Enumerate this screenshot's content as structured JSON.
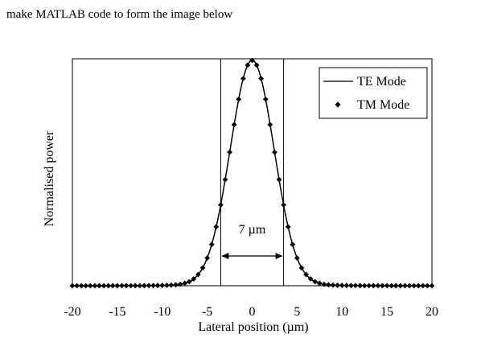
{
  "question": {
    "text": "make MATLAB code to form the image below"
  },
  "chart_data": {
    "type": "line",
    "xlabel": "Lateral position (µm)",
    "ylabel": "Normalised power",
    "xlim": [
      -20,
      20
    ],
    "ylim": [
      0,
      1
    ],
    "xticks": [
      -20,
      -15,
      -10,
      -5,
      0,
      5,
      10,
      15,
      20
    ],
    "xtick_labels": [
      "-20",
      "-15",
      "-10",
      "-5",
      "0",
      "5",
      "10",
      "15",
      "20"
    ],
    "grid": false,
    "legend_position": "top-right",
    "series": [
      {
        "name": "TE Mode",
        "style": "solid-line",
        "color": "#000000",
        "profile": {
          "peak": 1.0,
          "center": 0,
          "fwhm_um": 5.6,
          "shape": "gaussian-like with extended tails"
        }
      },
      {
        "name": "TM Mode",
        "style": "diamond-markers",
        "color": "#000000",
        "x_start": -20,
        "x_end": 20,
        "x_step": 0.5
      }
    ],
    "annotation": {
      "text": "7 µm",
      "vlines_x": [
        -3.5,
        3.5
      ],
      "arrow": "double-headed between vertical lines"
    }
  }
}
